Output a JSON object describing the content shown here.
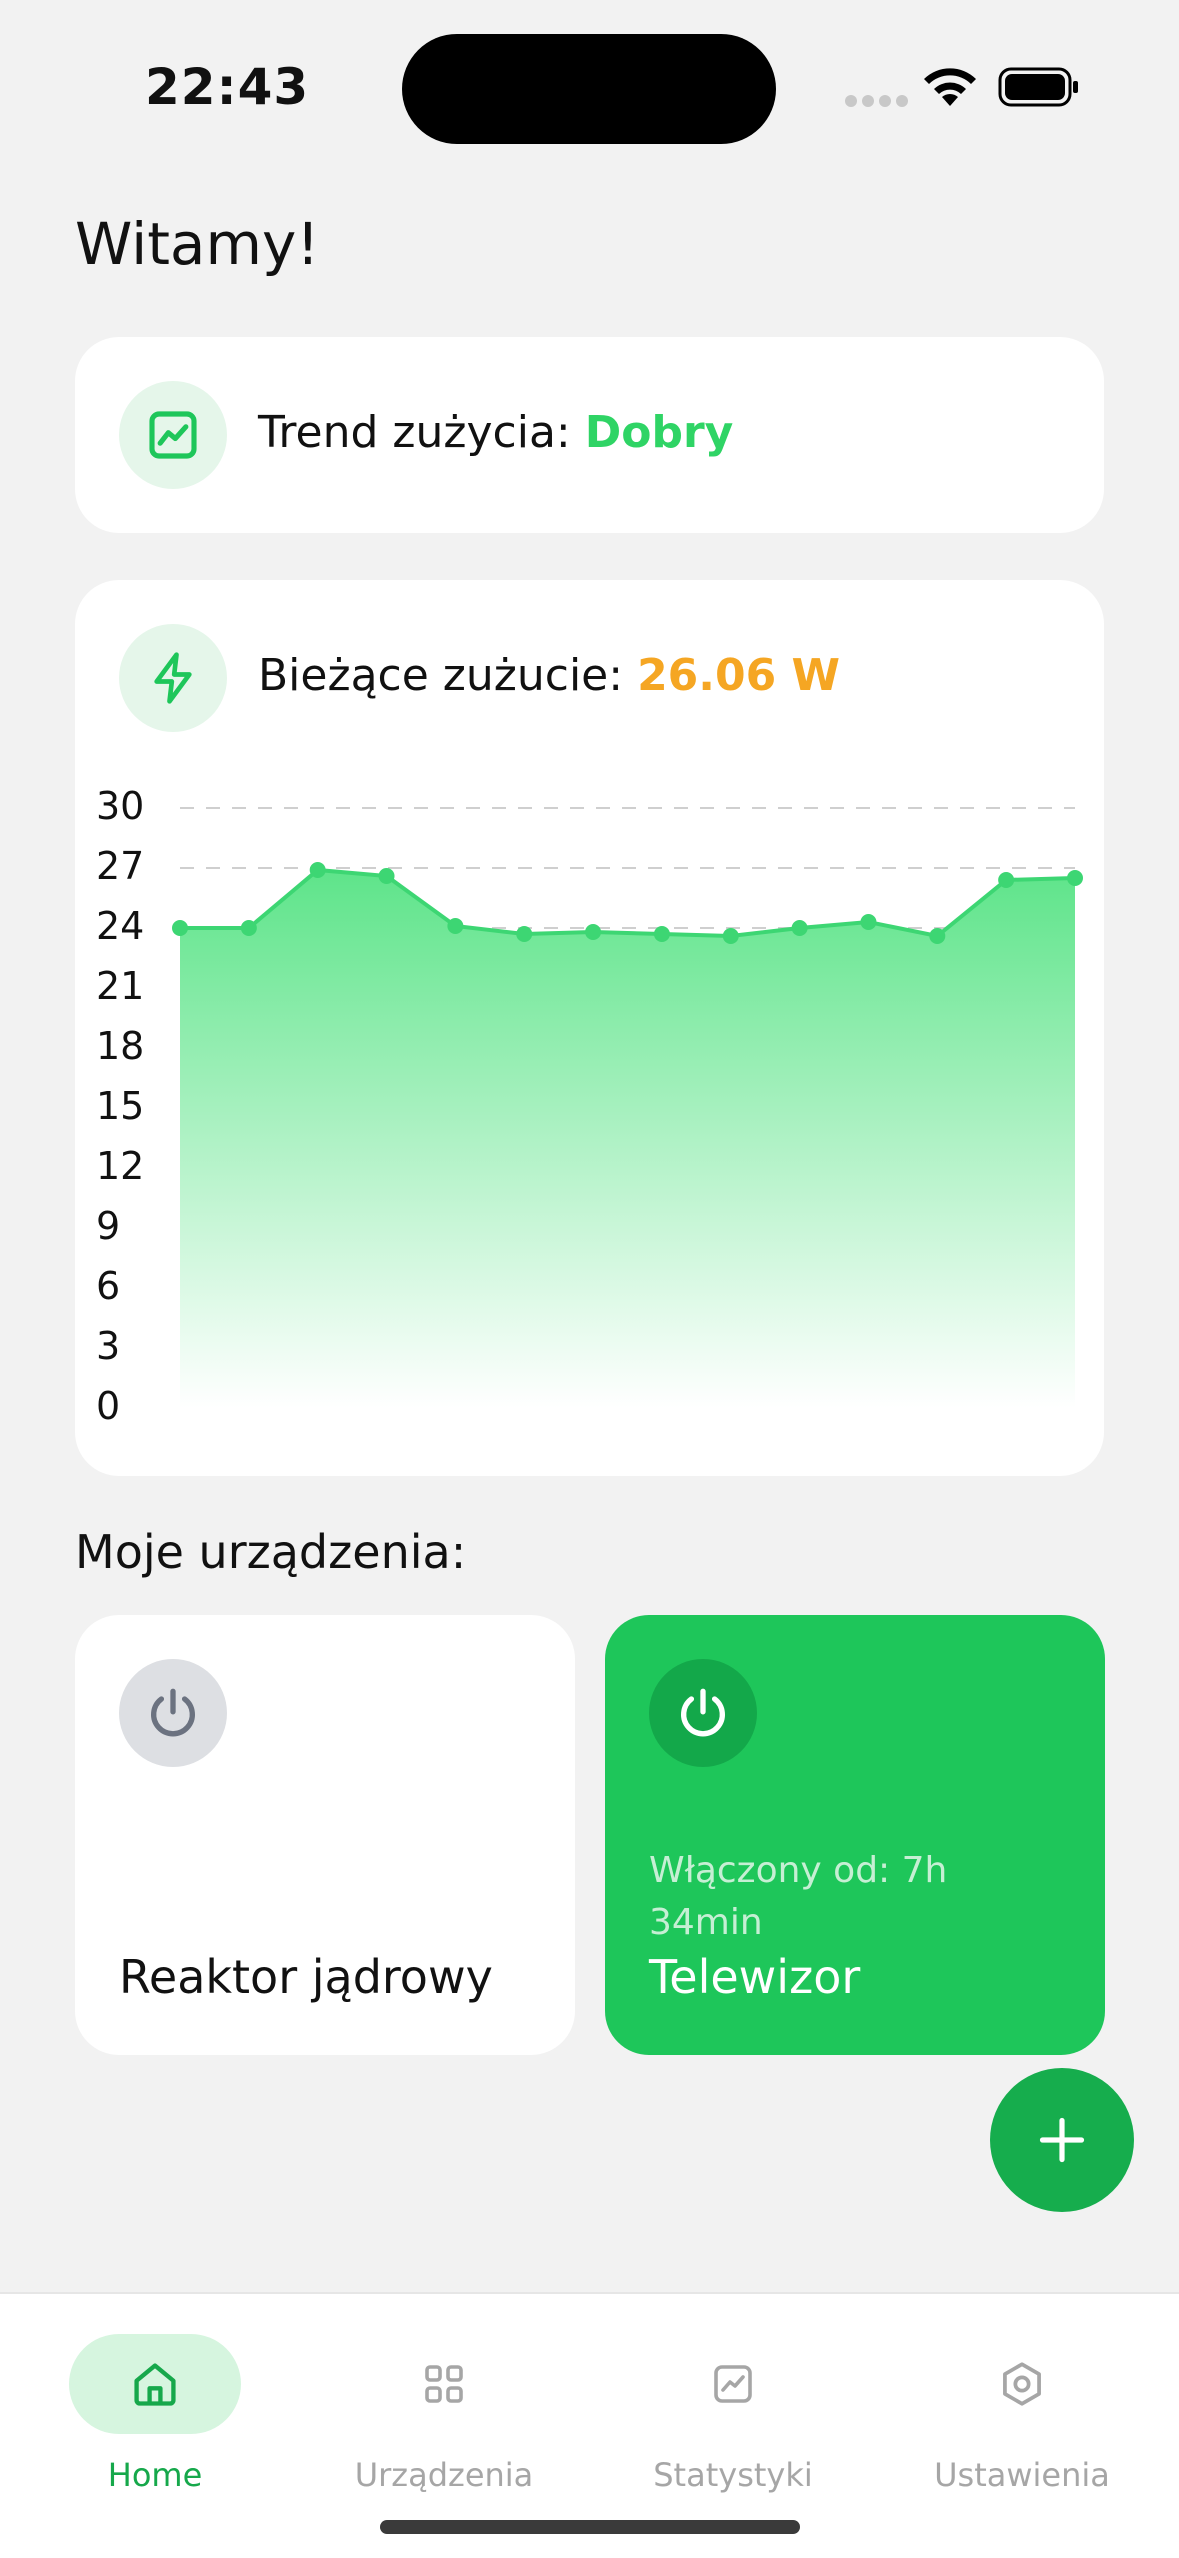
{
  "status_bar": {
    "time": "22:43"
  },
  "greeting": "Witamy!",
  "trend_card": {
    "label": "Trend zużycia:",
    "value": "Dobry"
  },
  "usage_card": {
    "label": "Bieżące zużucie:",
    "value": "26.06 W",
    "chart_data": {
      "type": "area",
      "y_ticks": [
        "30",
        "27",
        "24",
        "21",
        "18",
        "15",
        "12",
        "9",
        "6",
        "3",
        "0"
      ],
      "ylim": [
        0,
        30
      ],
      "grid": "dashed horizontal at 30, 27, 24",
      "series": [
        {
          "values": [
            24.0,
            24.0,
            26.9,
            26.6,
            24.1,
            23.7,
            23.8,
            23.7,
            23.6,
            24.0,
            24.3,
            23.6,
            26.4,
            26.5
          ]
        }
      ],
      "colors": {
        "line": "#3dd673",
        "fill_top": "#5ee48a",
        "fill_bottom": "#ffffff"
      }
    }
  },
  "devices_section": {
    "title": "Moje urządzenia:",
    "devices": [
      {
        "name": "Reaktor jądrowy",
        "state": "off"
      },
      {
        "name": "Telewizor",
        "state": "on",
        "status": "Włączony od: 7h 34min"
      }
    ]
  },
  "tabs": [
    {
      "label": "Home",
      "icon": "home-icon",
      "active": true
    },
    {
      "label": "Urządzenia",
      "icon": "grid-icon",
      "active": false
    },
    {
      "label": "Statystyki",
      "icon": "chart-icon",
      "active": false
    },
    {
      "label": "Ustawienia",
      "icon": "settings-icon",
      "active": false
    }
  ],
  "colors": {
    "accent": "#1ec65a",
    "accent_dark": "#16ad4d",
    "warning": "#f5a623",
    "background": "#f2f2f2"
  }
}
